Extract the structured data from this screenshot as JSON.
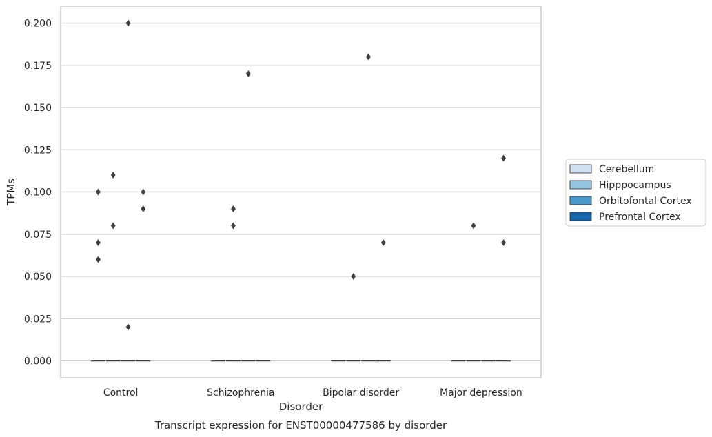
{
  "chart_data": {
    "type": "box",
    "title": "Transcript expression for ENST00000477586 by disorder",
    "xlabel": "Disorder",
    "ylabel": "TPMs",
    "categories": [
      "Control",
      "Schizophrenia",
      "Bipolar disorder",
      "Major depression"
    ],
    "ylim": [
      -0.01,
      0.21
    ],
    "yticks": [
      "0.000",
      "0.025",
      "0.050",
      "0.075",
      "0.100",
      "0.125",
      "0.150",
      "0.175",
      "0.200"
    ],
    "grid": true,
    "legend_position": "right",
    "series": [
      {
        "name": "Cerebellum",
        "color": "#d0e1f2",
        "medians": [
          0,
          0,
          0,
          0
        ],
        "outliers": [
          [
            0.06,
            0.07,
            0.1
          ],
          [],
          [],
          []
        ]
      },
      {
        "name": "Hipppocampus",
        "color": "#94c4df",
        "medians": [
          0,
          0,
          0,
          0
        ],
        "outliers": [
          [
            0.08,
            0.11
          ],
          [
            0.08,
            0.09
          ],
          [
            0.05
          ],
          [
            0.08
          ]
        ]
      },
      {
        "name": "Orbitofontal Cortex",
        "color": "#4a98c9",
        "medians": [
          0,
          0,
          0,
          0
        ],
        "outliers": [
          [
            0.02,
            0.2
          ],
          [
            0.17
          ],
          [
            0.18
          ],
          []
        ]
      },
      {
        "name": "Prefrontal Cortex",
        "color": "#1764ab",
        "medians": [
          0,
          0,
          0,
          0
        ],
        "outliers": [
          [
            0.09,
            0.1
          ],
          [],
          [
            0.07
          ],
          [
            0.07,
            0.12
          ]
        ]
      }
    ]
  }
}
